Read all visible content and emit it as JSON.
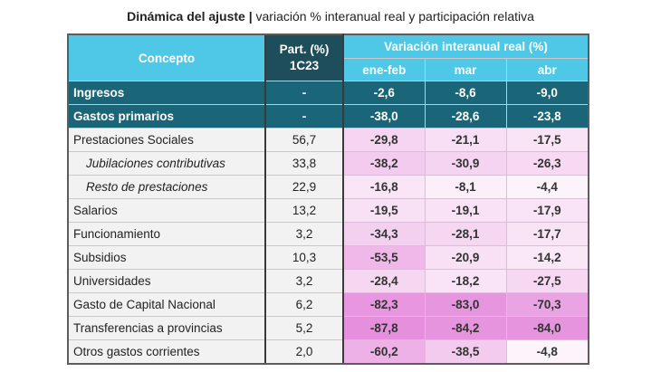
{
  "title": {
    "bold": "Dinámica del ajuste |",
    "rest": " variación % interanual real y participación relativa"
  },
  "header": {
    "concepto": "Concepto",
    "part_line1": "Part. (%)",
    "part_line2": "1C23",
    "variacion": "Variación interanual real (%)",
    "months": [
      "ene-feb",
      "mar",
      "abr"
    ]
  },
  "rows": [
    {
      "label": "Ingresos",
      "part": "-",
      "v": [
        "-2,6",
        "-8,6",
        "-9,0"
      ]
    },
    {
      "label": "Gastos primarios",
      "part": "-",
      "v": [
        "-38,0",
        "-28,6",
        "-23,8"
      ]
    },
    {
      "label": "Prestaciones Sociales",
      "part": "56,7",
      "v": [
        "-29,8",
        "-21,1",
        "-17,5"
      ]
    },
    {
      "label": "Jubilaciones contributivas",
      "part": "33,8",
      "v": [
        "-38,2",
        "-30,9",
        "-26,3"
      ]
    },
    {
      "label": "Resto de prestaciones",
      "part": "22,9",
      "v": [
        "-16,8",
        "-8,1",
        "-4,4"
      ]
    },
    {
      "label": "Salarios",
      "part": "13,2",
      "v": [
        "-19,5",
        "-19,1",
        "-17,9"
      ]
    },
    {
      "label": "Funcionamiento",
      "part": "3,2",
      "v": [
        "-34,3",
        "-28,1",
        "-17,7"
      ]
    },
    {
      "label": "Subsidios",
      "part": "10,3",
      "v": [
        "-53,5",
        "-20,9",
        "-14,2"
      ]
    },
    {
      "label": "Universidades",
      "part": "3,2",
      "v": [
        "-28,4",
        "-18,2",
        "-27,5"
      ]
    },
    {
      "label": "Gasto de Capital Nacional",
      "part": "6,2",
      "v": [
        "-82,3",
        "-83,0",
        "-70,3"
      ]
    },
    {
      "label": "Transferencias a provincias",
      "part": "5,2",
      "v": [
        "-87,8",
        "-84,2",
        "-84,0"
      ]
    },
    {
      "label": "Otros gastos corrientes",
      "part": "2,0",
      "v": [
        "-60,2",
        "-38,5",
        "-4,8"
      ]
    }
  ],
  "colors": {
    "header_light": "#4ec8e6",
    "header_dark": "#1e4d5c",
    "row_dark": "#1a6678",
    "heat_low": "#fdf4fb",
    "heat_high": "#e58fdd"
  }
}
